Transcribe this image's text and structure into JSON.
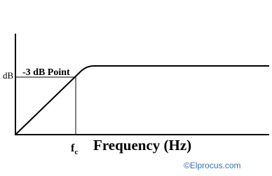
{
  "diagram": {
    "y_axis_label": "dB",
    "point_label": "-3 dB Point",
    "cutoff_label": "f",
    "cutoff_subscript": "c",
    "x_axis_label": "Frequency (Hz)",
    "watermark": "©Elprocus.com"
  }
}
